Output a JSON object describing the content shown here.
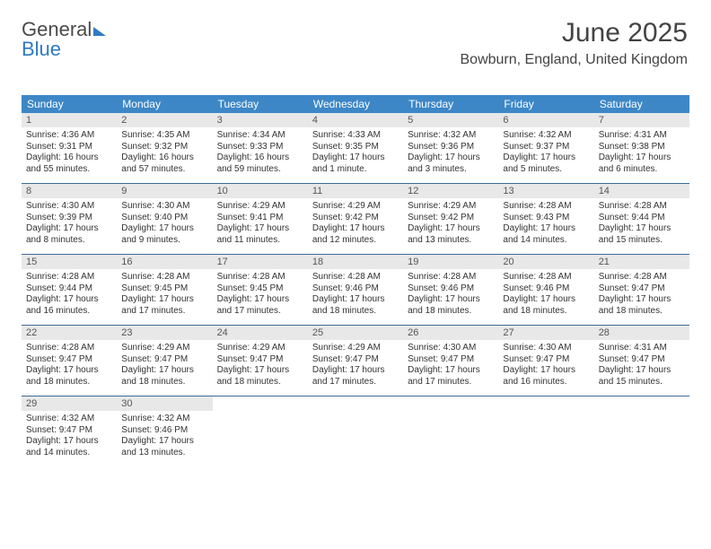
{
  "logo": {
    "text_gray": "General",
    "text_blue": "Blue"
  },
  "header": {
    "month_title": "June 2025",
    "location": "Bowburn, England, United Kingdom"
  },
  "colors": {
    "header_bg": "#3d87c7",
    "header_text": "#ffffff",
    "daynum_bg": "#e8e8e8",
    "row_border": "#3d6b96",
    "title_color": "#434343",
    "body_text": "#333333"
  },
  "typography": {
    "month_title_fontsize": 30,
    "location_fontsize": 16,
    "dow_fontsize": 12,
    "daynum_fontsize": 11,
    "body_fontsize": 10
  },
  "dow": [
    "Sunday",
    "Monday",
    "Tuesday",
    "Wednesday",
    "Thursday",
    "Friday",
    "Saturday"
  ],
  "days": [
    {
      "n": "1",
      "sr": "4:36 AM",
      "ss": "9:31 PM",
      "dl": "16 hours and 55 minutes."
    },
    {
      "n": "2",
      "sr": "4:35 AM",
      "ss": "9:32 PM",
      "dl": "16 hours and 57 minutes."
    },
    {
      "n": "3",
      "sr": "4:34 AM",
      "ss": "9:33 PM",
      "dl": "16 hours and 59 minutes."
    },
    {
      "n": "4",
      "sr": "4:33 AM",
      "ss": "9:35 PM",
      "dl": "17 hours and 1 minute."
    },
    {
      "n": "5",
      "sr": "4:32 AM",
      "ss": "9:36 PM",
      "dl": "17 hours and 3 minutes."
    },
    {
      "n": "6",
      "sr": "4:32 AM",
      "ss": "9:37 PM",
      "dl": "17 hours and 5 minutes."
    },
    {
      "n": "7",
      "sr": "4:31 AM",
      "ss": "9:38 PM",
      "dl": "17 hours and 6 minutes."
    },
    {
      "n": "8",
      "sr": "4:30 AM",
      "ss": "9:39 PM",
      "dl": "17 hours and 8 minutes."
    },
    {
      "n": "9",
      "sr": "4:30 AM",
      "ss": "9:40 PM",
      "dl": "17 hours and 9 minutes."
    },
    {
      "n": "10",
      "sr": "4:29 AM",
      "ss": "9:41 PM",
      "dl": "17 hours and 11 minutes."
    },
    {
      "n": "11",
      "sr": "4:29 AM",
      "ss": "9:42 PM",
      "dl": "17 hours and 12 minutes."
    },
    {
      "n": "12",
      "sr": "4:29 AM",
      "ss": "9:42 PM",
      "dl": "17 hours and 13 minutes."
    },
    {
      "n": "13",
      "sr": "4:28 AM",
      "ss": "9:43 PM",
      "dl": "17 hours and 14 minutes."
    },
    {
      "n": "14",
      "sr": "4:28 AM",
      "ss": "9:44 PM",
      "dl": "17 hours and 15 minutes."
    },
    {
      "n": "15",
      "sr": "4:28 AM",
      "ss": "9:44 PM",
      "dl": "17 hours and 16 minutes."
    },
    {
      "n": "16",
      "sr": "4:28 AM",
      "ss": "9:45 PM",
      "dl": "17 hours and 17 minutes."
    },
    {
      "n": "17",
      "sr": "4:28 AM",
      "ss": "9:45 PM",
      "dl": "17 hours and 17 minutes."
    },
    {
      "n": "18",
      "sr": "4:28 AM",
      "ss": "9:46 PM",
      "dl": "17 hours and 18 minutes."
    },
    {
      "n": "19",
      "sr": "4:28 AM",
      "ss": "9:46 PM",
      "dl": "17 hours and 18 minutes."
    },
    {
      "n": "20",
      "sr": "4:28 AM",
      "ss": "9:46 PM",
      "dl": "17 hours and 18 minutes."
    },
    {
      "n": "21",
      "sr": "4:28 AM",
      "ss": "9:47 PM",
      "dl": "17 hours and 18 minutes."
    },
    {
      "n": "22",
      "sr": "4:28 AM",
      "ss": "9:47 PM",
      "dl": "17 hours and 18 minutes."
    },
    {
      "n": "23",
      "sr": "4:29 AM",
      "ss": "9:47 PM",
      "dl": "17 hours and 18 minutes."
    },
    {
      "n": "24",
      "sr": "4:29 AM",
      "ss": "9:47 PM",
      "dl": "17 hours and 18 minutes."
    },
    {
      "n": "25",
      "sr": "4:29 AM",
      "ss": "9:47 PM",
      "dl": "17 hours and 17 minutes."
    },
    {
      "n": "26",
      "sr": "4:30 AM",
      "ss": "9:47 PM",
      "dl": "17 hours and 17 minutes."
    },
    {
      "n": "27",
      "sr": "4:30 AM",
      "ss": "9:47 PM",
      "dl": "17 hours and 16 minutes."
    },
    {
      "n": "28",
      "sr": "4:31 AM",
      "ss": "9:47 PM",
      "dl": "17 hours and 15 minutes."
    },
    {
      "n": "29",
      "sr": "4:32 AM",
      "ss": "9:47 PM",
      "dl": "17 hours and 14 minutes."
    },
    {
      "n": "30",
      "sr": "4:32 AM",
      "ss": "9:46 PM",
      "dl": "17 hours and 13 minutes."
    }
  ],
  "labels": {
    "sunrise_prefix": "Sunrise: ",
    "sunset_prefix": "Sunset: ",
    "daylight_prefix": "Daylight: "
  },
  "layout": {
    "start_weekday_index": 0,
    "weeks": 5,
    "cols": 7
  }
}
